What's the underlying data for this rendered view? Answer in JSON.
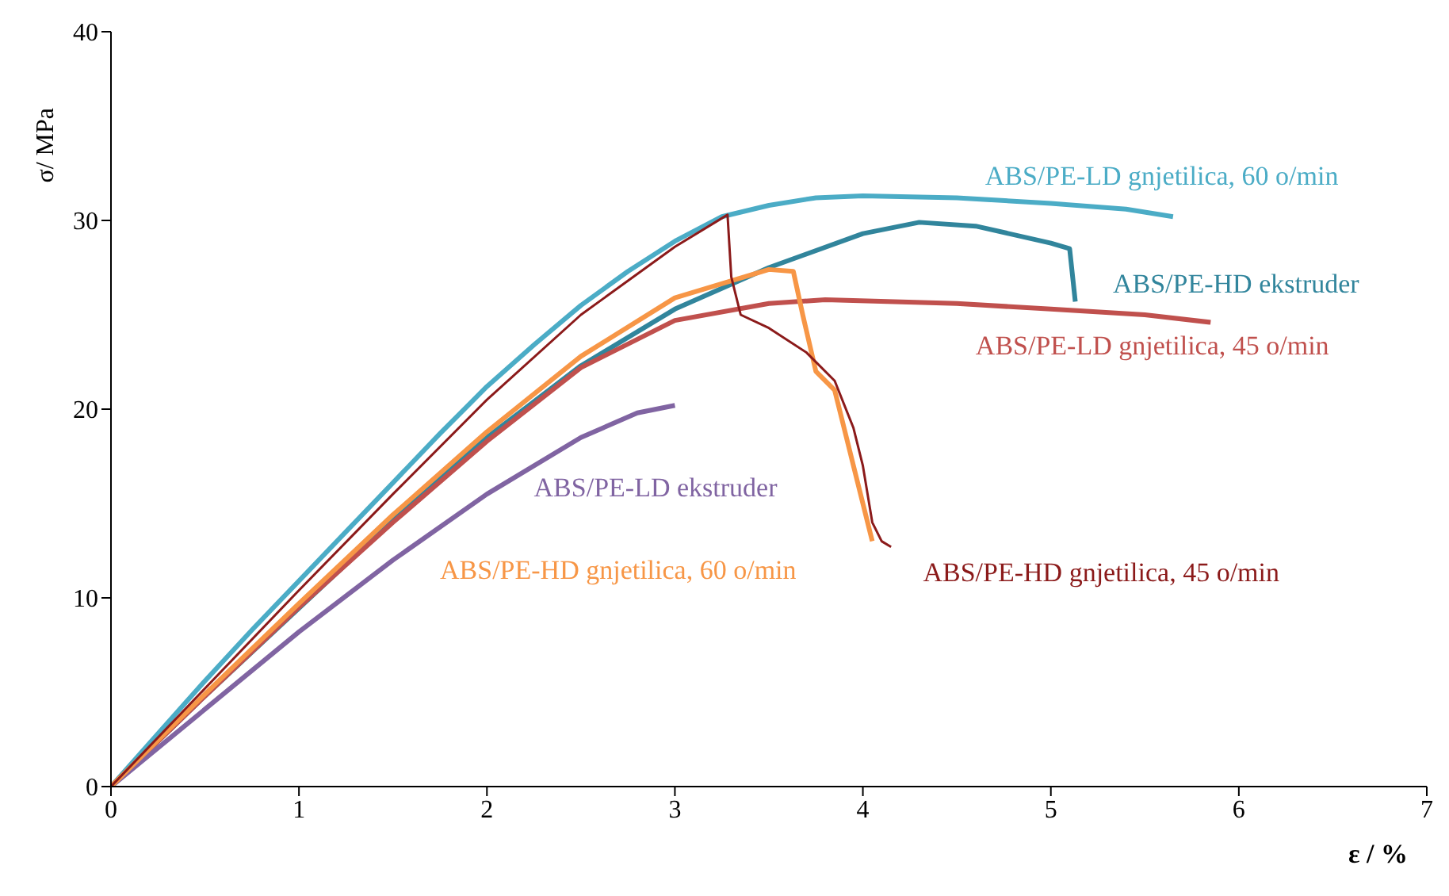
{
  "chart_data": {
    "type": "line",
    "xlabel": "ε / %",
    "ylabel": "σ/ MPa",
    "xlim": [
      0,
      7
    ],
    "xticks": [
      0,
      1,
      2,
      3,
      4,
      5,
      6,
      7
    ],
    "ylim": [
      0,
      40
    ],
    "yticks": [
      0,
      10,
      20,
      30,
      40
    ],
    "grid": false,
    "marker": "none",
    "line_style": "solid",
    "series": [
      {
        "name": "ABS/PE-LD gnjetilica, 60 o/min",
        "color": "#4bacc6",
        "x": [
          0,
          0.25,
          0.5,
          0.75,
          1,
          1.25,
          1.5,
          1.75,
          2,
          2.25,
          2.5,
          2.75,
          3,
          3.25,
          3.5,
          3.75,
          4,
          4.5,
          5,
          5.4,
          5.65
        ],
        "values": [
          0,
          2.8,
          5.6,
          8.3,
          10.9,
          13.5,
          16.1,
          18.7,
          21.2,
          23.4,
          25.5,
          27.3,
          28.9,
          30.2,
          30.8,
          31.2,
          31.3,
          31.2,
          30.9,
          30.6,
          30.2
        ]
      },
      {
        "name": "ABS/PE-HD ekstruder",
        "color": "#31859c",
        "x": [
          0,
          0.5,
          1.5,
          2,
          2.5,
          3,
          3.5,
          4,
          4.3,
          4.6,
          5,
          5.1,
          5.13
        ],
        "values": [
          0,
          4.8,
          14.1,
          18.5,
          22.3,
          25.3,
          27.5,
          29.3,
          29.9,
          29.7,
          28.8,
          28.5,
          25.7
        ]
      },
      {
        "name": "ABS/PE-LD gnjetilica, 45 o/min",
        "color": "#c0504d",
        "x": [
          0,
          0.5,
          1,
          1.5,
          2,
          2.5,
          3,
          3.5,
          3.8,
          4.5,
          5,
          5.5,
          5.85
        ],
        "values": [
          0,
          4.8,
          9.5,
          14,
          18.3,
          22.2,
          24.7,
          25.6,
          25.8,
          25.6,
          25.3,
          25,
          24.6
        ]
      },
      {
        "name": "ABS/PE-LD ekstruder",
        "color": "#8064a2",
        "x": [
          0,
          0.5,
          1,
          1.5,
          2,
          2.5,
          2.8,
          3
        ],
        "values": [
          0,
          4.1,
          8.2,
          12,
          15.5,
          18.5,
          19.8,
          20.2
        ]
      },
      {
        "name": "ABS/PE-HD gnjetilica, 60 o/min",
        "color": "#f79646",
        "x": [
          0,
          0.5,
          1,
          1.5,
          2,
          2.5,
          3,
          3.5,
          3.63,
          3.68,
          3.75,
          3.85,
          3.95,
          4.05
        ],
        "values": [
          0,
          4.9,
          9.7,
          14.4,
          18.8,
          22.8,
          25.9,
          27.4,
          27.3,
          25,
          22,
          21,
          17,
          13
        ]
      },
      {
        "name": "ABS/PE-HD gnjetilica, 45 o/min",
        "color": "#8b1a1a",
        "x": [
          0,
          0.5,
          1,
          1.5,
          2,
          2.5,
          3,
          3.28,
          3.3,
          3.35,
          3.5,
          3.7,
          3.85,
          3.95,
          4,
          4.05,
          4.1,
          4.15
        ],
        "values": [
          0,
          5.2,
          10.4,
          15.5,
          20.5,
          25,
          28.6,
          30.3,
          27,
          25,
          24.3,
          23,
          21.5,
          19,
          17,
          14,
          13,
          12.7
        ]
      }
    ]
  }
}
